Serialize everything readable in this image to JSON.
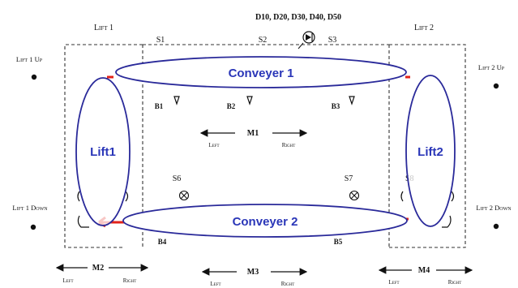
{
  "header": {
    "sensor_codes": "D10, D20, D30, D40, D50"
  },
  "lifts": {
    "lift1": {
      "title": "Lift 1",
      "up": "Lift 1 Up",
      "down": "Lift 1 Down",
      "ellipse_label": "Lift1"
    },
    "lift2": {
      "title": "Lift 2",
      "up": "Lift 2 Up",
      "down": "Lift 2 Down",
      "ellipse_label": "Lift2"
    }
  },
  "conveyors": {
    "c1": {
      "label": "Conveyer 1"
    },
    "c2": {
      "label": "Conveyer 2"
    }
  },
  "sensors": {
    "s1": "S1",
    "s2": "S2",
    "s3": "S3",
    "s6": "S6",
    "s7": "S7",
    "s8": "S8",
    "b1": "B1",
    "b2": "B2",
    "b3": "B3",
    "b4": "B4",
    "b5": "B5"
  },
  "motors": {
    "m1": {
      "name": "M1",
      "left": "Left",
      "right": "Right"
    },
    "m2": {
      "name": "M2",
      "left": "Left",
      "right": "Right"
    },
    "m3": {
      "name": "M3",
      "left": "Left",
      "right": "Right"
    },
    "m4": {
      "name": "M4",
      "left": "Left",
      "right": "Right"
    }
  },
  "colors": {
    "ellipse_stroke": "#2a2a9a",
    "label_text": "#2a36b8",
    "highlight": "#e2231a"
  }
}
